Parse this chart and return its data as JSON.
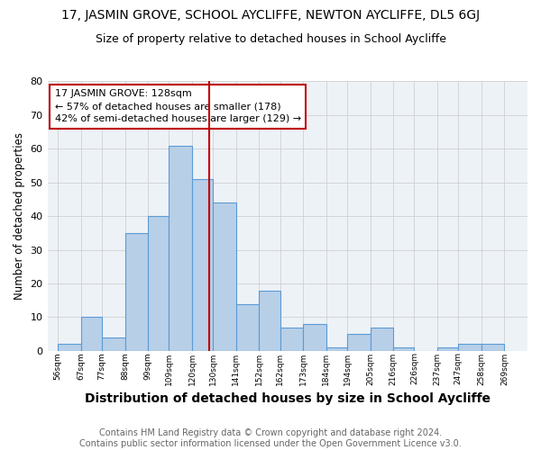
{
  "title": "17, JASMIN GROVE, SCHOOL AYCLIFFE, NEWTON AYCLIFFE, DL5 6GJ",
  "subtitle": "Size of property relative to detached houses in School Aycliffe",
  "xlabel": "Distribution of detached houses by size in School Aycliffe",
  "ylabel": "Number of detached properties",
  "bar_left_edges": [
    56,
    67,
    77,
    88,
    99,
    109,
    120,
    130,
    141,
    152,
    162,
    173,
    184,
    194,
    205,
    216,
    226,
    237,
    247,
    258
  ],
  "bar_widths": [
    11,
    10,
    11,
    11,
    10,
    11,
    10,
    11,
    11,
    10,
    11,
    11,
    10,
    11,
    11,
    10,
    11,
    10,
    11,
    11
  ],
  "bar_heights": [
    2,
    10,
    4,
    35,
    40,
    61,
    51,
    44,
    14,
    18,
    7,
    8,
    1,
    5,
    7,
    1,
    0,
    1,
    2,
    2
  ],
  "bar_color": "#b8cfe8",
  "bar_edge_color": "#5b9bd5",
  "vline_x": 128,
  "vline_color": "#c00000",
  "annotation_line1": "17 JASMIN GROVE: 128sqm",
  "annotation_line2": "← 57% of detached houses are smaller (178)",
  "annotation_line3": "42% of semi-detached houses are larger (129) →",
  "annotation_box_color": "#ffffff",
  "annotation_box_edge_color": "#c00000",
  "ylim": [
    0,
    80
  ],
  "yticks": [
    0,
    10,
    20,
    30,
    40,
    50,
    60,
    70,
    80
  ],
  "xtick_labels": [
    "56sqm",
    "67sqm",
    "77sqm",
    "88sqm",
    "99sqm",
    "109sqm",
    "120sqm",
    "130sqm",
    "141sqm",
    "152sqm",
    "162sqm",
    "173sqm",
    "184sqm",
    "194sqm",
    "205sqm",
    "216sqm",
    "226sqm",
    "237sqm",
    "247sqm",
    "258sqm",
    "269sqm"
  ],
  "xtick_positions": [
    56,
    67,
    77,
    88,
    99,
    109,
    120,
    130,
    141,
    152,
    162,
    173,
    184,
    194,
    205,
    216,
    226,
    237,
    247,
    258,
    269
  ],
  "grid_color": "#d0d0d0",
  "background_color": "#edf2f7",
  "footer_text": "Contains HM Land Registry data © Crown copyright and database right 2024.\nContains public sector information licensed under the Open Government Licence v3.0.",
  "title_fontsize": 10,
  "subtitle_fontsize": 9,
  "xlabel_fontsize": 10,
  "ylabel_fontsize": 8.5,
  "annotation_fontsize": 8,
  "footer_fontsize": 7,
  "xlim_left": 51,
  "xlim_right": 280
}
